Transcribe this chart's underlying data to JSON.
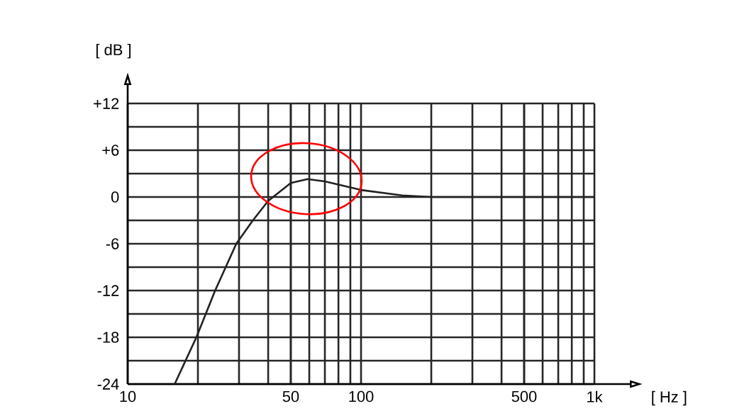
{
  "chart_data": {
    "type": "line",
    "xlabel": "[ Hz ]",
    "ylabel": "[ dB ]",
    "log": "x",
    "grid": true,
    "x": [
      15.9,
      19.7,
      23.7,
      29.2,
      34.4,
      40,
      50,
      59,
      70,
      80,
      100,
      150,
      200,
      1000
    ],
    "series": [
      {
        "color": "#222222",
        "values": [
          -24,
          -18,
          -12,
          -6,
          -3,
          -0.5,
          1.8,
          2.3,
          2.0,
          1.6,
          0.9,
          0.2,
          0,
          0
        ]
      }
    ],
    "xlim": [
      10,
      1000
    ],
    "ylim": [
      -24,
      12
    ],
    "xticks": [
      10,
      50,
      100,
      500,
      {
        "value": 1000,
        "label": "1k"
      }
    ],
    "yticks": [
      {
        "value": 12,
        "label": "+12"
      },
      {
        "value": 6,
        "label": "+6"
      },
      0,
      -6,
      -12,
      -18,
      -24
    ]
  }
}
